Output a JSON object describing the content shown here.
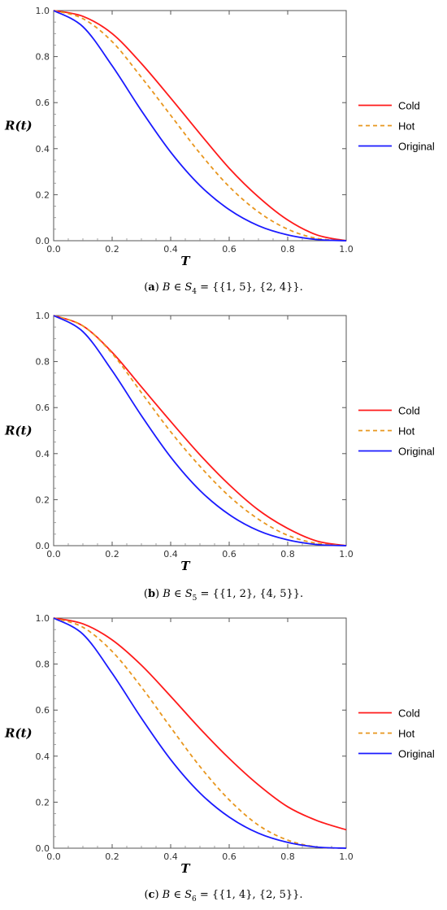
{
  "chart_data": [
    {
      "type": "line",
      "panel_label": "a",
      "caption_prefix": "B ∈ S",
      "caption_subscript": "4",
      "caption_set": " = {{1, 5}, {2, 4}}.",
      "xlabel": "T",
      "ylabel": "R(t)",
      "xlim": [
        0,
        1
      ],
      "ylim": [
        0,
        1
      ],
      "xticks": [
        "0.0",
        "0.2",
        "0.4",
        "0.6",
        "0.8",
        "1.0"
      ],
      "yticks": [
        "0.0",
        "0.2",
        "0.4",
        "0.6",
        "0.8",
        "1.0"
      ],
      "legend_position": "right",
      "x": [
        0,
        0.1,
        0.2,
        0.3,
        0.4,
        0.5,
        0.6,
        0.7,
        0.8,
        0.9,
        1.0
      ],
      "series": [
        {
          "name": "Cold",
          "color": "#ff1a1a",
          "dashed": false,
          "values": [
            1.0,
            0.975,
            0.9,
            0.77,
            0.62,
            0.465,
            0.315,
            0.19,
            0.09,
            0.025,
            0.0
          ]
        },
        {
          "name": "Hot",
          "color": "#e8961e",
          "dashed": true,
          "values": [
            1.0,
            0.965,
            0.865,
            0.71,
            0.545,
            0.38,
            0.235,
            0.125,
            0.05,
            0.01,
            0.0
          ]
        },
        {
          "name": "Original",
          "color": "#1a1aff",
          "dashed": false,
          "values": [
            1.0,
            0.93,
            0.76,
            0.565,
            0.385,
            0.24,
            0.135,
            0.065,
            0.025,
            0.005,
            0.0
          ]
        }
      ]
    },
    {
      "type": "line",
      "panel_label": "b",
      "caption_prefix": "B ∈ S",
      "caption_subscript": "5",
      "caption_set": " = {{1, 2}, {4, 5}}.",
      "xlabel": "T",
      "ylabel": "R(t)",
      "xlim": [
        0,
        1
      ],
      "ylim": [
        0,
        1
      ],
      "xticks": [
        "0.0",
        "0.2",
        "0.4",
        "0.6",
        "0.8",
        "1.0"
      ],
      "yticks": [
        "0.0",
        "0.2",
        "0.4",
        "0.6",
        "0.8",
        "1.0"
      ],
      "legend_position": "right",
      "x": [
        0,
        0.1,
        0.2,
        0.3,
        0.4,
        0.5,
        0.6,
        0.7,
        0.8,
        0.9,
        1.0
      ],
      "series": [
        {
          "name": "Cold",
          "color": "#ff1a1a",
          "dashed": false,
          "values": [
            1.0,
            0.955,
            0.84,
            0.69,
            0.54,
            0.395,
            0.265,
            0.155,
            0.075,
            0.02,
            0.0
          ]
        },
        {
          "name": "Hot",
          "color": "#e8961e",
          "dashed": true,
          "values": [
            1.0,
            0.955,
            0.835,
            0.665,
            0.495,
            0.345,
            0.215,
            0.115,
            0.045,
            0.01,
            0.0
          ]
        },
        {
          "name": "Original",
          "color": "#1a1aff",
          "dashed": false,
          "values": [
            1.0,
            0.93,
            0.76,
            0.565,
            0.385,
            0.24,
            0.135,
            0.065,
            0.025,
            0.005,
            0.0
          ]
        }
      ]
    },
    {
      "type": "line",
      "panel_label": "c",
      "caption_prefix": "B ∈ S",
      "caption_subscript": "6",
      "caption_set": " = {{1, 4}, {2, 5}}.",
      "xlabel": "T",
      "ylabel": "R(t)",
      "xlim": [
        0,
        1
      ],
      "ylim": [
        0,
        1
      ],
      "xticks": [
        "0.0",
        "0.2",
        "0.4",
        "0.6",
        "0.8",
        "1.0"
      ],
      "yticks": [
        "0.0",
        "0.2",
        "0.4",
        "0.6",
        "0.8",
        "1.0"
      ],
      "legend_position": "right",
      "x": [
        0,
        0.1,
        0.2,
        0.3,
        0.4,
        0.5,
        0.6,
        0.7,
        0.8,
        0.9,
        1.0
      ],
      "series": [
        {
          "name": "Cold",
          "color": "#ff1a1a",
          "dashed": false,
          "values": [
            1.0,
            0.975,
            0.905,
            0.795,
            0.66,
            0.52,
            0.39,
            0.275,
            0.18,
            0.12,
            0.08
          ]
        },
        {
          "name": "Hot",
          "color": "#e8961e",
          "dashed": true,
          "values": [
            1.0,
            0.96,
            0.855,
            0.7,
            0.525,
            0.355,
            0.21,
            0.1,
            0.035,
            0.005,
            0.0
          ]
        },
        {
          "name": "Original",
          "color": "#1a1aff",
          "dashed": false,
          "values": [
            1.0,
            0.93,
            0.76,
            0.565,
            0.385,
            0.24,
            0.135,
            0.065,
            0.025,
            0.005,
            0.0
          ]
        }
      ]
    }
  ]
}
